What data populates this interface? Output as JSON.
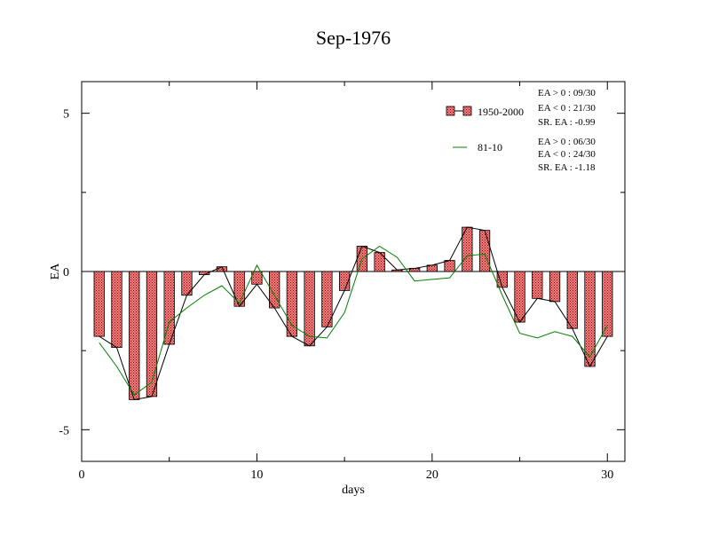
{
  "chart_data": {
    "type": "bar",
    "title": "Sep-1976",
    "xlabel": "days",
    "ylabel": "EA",
    "xlim": [
      0,
      31
    ],
    "ylim": [
      -6,
      6
    ],
    "xticks": [
      0,
      10,
      20,
      30
    ],
    "xtick_labels": [
      "0",
      "10",
      "20",
      "30"
    ],
    "yticks": [
      -5,
      0,
      5
    ],
    "ytick_labels": [
      "-5",
      "0",
      "5"
    ],
    "grid": false,
    "legend_position": "top-right",
    "colors": {
      "bar_fill": "#f08080",
      "bar_hatch": "#8b0000",
      "bar_line": "#000000",
      "clim_line": "#008000"
    },
    "x": [
      1,
      2,
      3,
      4,
      5,
      6,
      7,
      8,
      9,
      10,
      11,
      12,
      13,
      14,
      15,
      16,
      17,
      18,
      19,
      20,
      21,
      22,
      23,
      24,
      25,
      26,
      27,
      28,
      29,
      30
    ],
    "series": [
      {
        "name": "1950-2000",
        "kind": "bar",
        "values": [
          -2.05,
          -2.4,
          -4.05,
          -3.95,
          -2.3,
          -0.75,
          -0.1,
          0.15,
          -1.1,
          -0.4,
          -1.15,
          -2.05,
          -2.35,
          -1.75,
          -0.6,
          0.8,
          0.6,
          0.05,
          0.1,
          0.2,
          0.35,
          1.4,
          1.3,
          -0.5,
          -1.6,
          -0.85,
          -0.95,
          -1.8,
          -3.0,
          -2.05
        ]
      },
      {
        "name": "81-10",
        "kind": "line",
        "values": [
          -2.25,
          -3.0,
          -3.9,
          -3.5,
          -1.6,
          -1.15,
          -0.75,
          -0.45,
          -1.0,
          0.2,
          -0.75,
          -1.7,
          -2.05,
          -2.1,
          -1.3,
          0.4,
          0.8,
          0.45,
          -0.3,
          -0.25,
          -0.2,
          0.5,
          0.55,
          -0.75,
          -1.95,
          -2.1,
          -1.9,
          -2.05,
          -2.7,
          -1.7
        ]
      }
    ],
    "annotations": [
      [
        "EA > 0 : 09/30",
        "EA < 0 : 21/30",
        "SR. EA : -0.99"
      ],
      [
        "EA > 0 : 06/30",
        "EA < 0 : 24/30",
        "SR. EA : -1.18"
      ]
    ]
  }
}
